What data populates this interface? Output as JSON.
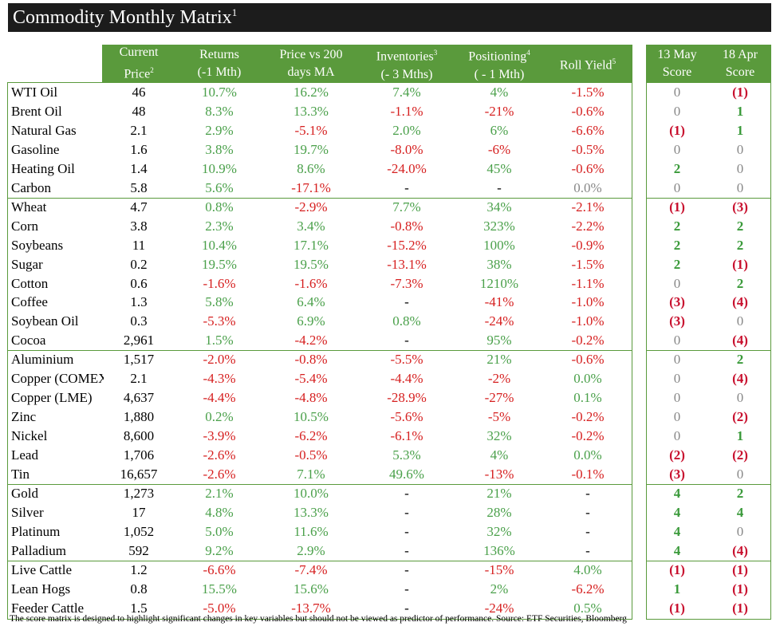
{
  "chart_data": {
    "type": "table",
    "title": "Commodity Monthly Matrix",
    "title_sup": "1",
    "columns": [
      {
        "label": "Current Price",
        "sup": "2"
      },
      {
        "label": "Returns (-1 Mth)",
        "sup": ""
      },
      {
        "label": "Price vs 200 days MA",
        "sup": ""
      },
      {
        "label": "Inventories (- 3 Mths)",
        "sup": "3"
      },
      {
        "label": "Positioning (- 1 Mth)",
        "sup": "4"
      },
      {
        "label": "Roll Yield",
        "sup": "5"
      },
      {
        "label": "13 May Score",
        "sup": ""
      },
      {
        "label": "18 Apr Score",
        "sup": ""
      }
    ],
    "groups": [
      {
        "rows": [
          {
            "name": "WTI Oil",
            "price": "46",
            "returns": "10.7%",
            "ma": "16.2%",
            "inv": "7.4%",
            "pos": "4%",
            "roll": "-1.5%",
            "may": "0",
            "apr": "(1)"
          },
          {
            "name": "Brent Oil",
            "price": "48",
            "returns": "8.3%",
            "ma": "13.3%",
            "inv": "-1.1%",
            "pos": "-21%",
            "roll": "-0.6%",
            "may": "0",
            "apr": "1"
          },
          {
            "name": "Natural Gas",
            "price": "2.1",
            "returns": "2.9%",
            "ma": "-5.1%",
            "inv": "2.0%",
            "pos": "6%",
            "roll": "-6.6%",
            "may": "(1)",
            "apr": "1"
          },
          {
            "name": "Gasoline",
            "price": "1.6",
            "returns": "3.8%",
            "ma": "19.7%",
            "inv": "-8.0%",
            "pos": "-6%",
            "roll": "-0.5%",
            "may": "0",
            "apr": "0"
          },
          {
            "name": "Heating Oil",
            "price": "1.4",
            "returns": "10.9%",
            "ma": "8.6%",
            "inv": "-24.0%",
            "pos": "45%",
            "roll": "-0.6%",
            "may": "2",
            "apr": "0"
          },
          {
            "name": "Carbon",
            "price": "5.8",
            "returns": "5.6%",
            "ma": "-17.1%",
            "inv": "-",
            "pos": "-",
            "roll": "0.0%",
            "may": "0",
            "apr": "0"
          }
        ]
      },
      {
        "rows": [
          {
            "name": "Wheat",
            "price": "4.7",
            "returns": "0.8%",
            "ma": "-2.9%",
            "inv": "7.7%",
            "pos": "34%",
            "roll": "-2.1%",
            "may": "(1)",
            "apr": "(3)"
          },
          {
            "name": "Corn",
            "price": "3.8",
            "returns": "2.3%",
            "ma": "3.4%",
            "inv": "-0.8%",
            "pos": "323%",
            "roll": "-2.2%",
            "may": "2",
            "apr": "2"
          },
          {
            "name": "Soybeans",
            "price": "11",
            "returns": "10.4%",
            "ma": "17.1%",
            "inv": "-15.2%",
            "pos": "100%",
            "roll": "-0.9%",
            "may": "2",
            "apr": "2"
          },
          {
            "name": "Sugar",
            "price": "0.2",
            "returns": "19.5%",
            "ma": "19.5%",
            "inv": "-13.1%",
            "pos": "38%",
            "roll": "-1.5%",
            "may": "2",
            "apr": "(1)"
          },
          {
            "name": "Cotton",
            "price": "0.6",
            "returns": "-1.6%",
            "ma": "-1.6%",
            "inv": "-7.3%",
            "pos": "1210%",
            "roll": "-1.1%",
            "may": "0",
            "apr": "2"
          },
          {
            "name": "Coffee",
            "price": "1.3",
            "returns": "5.8%",
            "ma": "6.4%",
            "inv": "-",
            "pos": "-41%",
            "roll": "-1.0%",
            "may": "(3)",
            "apr": "(4)"
          },
          {
            "name": "Soybean Oil",
            "price": "0.3",
            "returns": "-5.3%",
            "ma": "6.9%",
            "inv": "0.8%",
            "pos": "-24%",
            "roll": "-1.0%",
            "may": "(3)",
            "apr": "0"
          },
          {
            "name": "Cocoa",
            "price": "2,961",
            "returns": "1.5%",
            "ma": "-4.2%",
            "inv": "-",
            "pos": "95%",
            "roll": "-0.2%",
            "may": "0",
            "apr": "(4)"
          }
        ]
      },
      {
        "rows": [
          {
            "name": "Aluminium",
            "price": "1,517",
            "returns": "-2.0%",
            "ma": "-0.8%",
            "inv": "-5.5%",
            "pos": "21%",
            "roll": "-0.6%",
            "may": "0",
            "apr": "2"
          },
          {
            "name": "Copper (COMEX)",
            "price": "2.1",
            "returns": "-4.3%",
            "ma": "-5.4%",
            "inv": "-4.4%",
            "pos": "-2%",
            "roll": "0.0%",
            "may": "0",
            "apr": "(4)"
          },
          {
            "name": "Copper (LME)",
            "price": "4,637",
            "returns": "-4.4%",
            "ma": "-4.8%",
            "inv": "-28.9%",
            "pos": "-27%",
            "roll": "0.1%",
            "may": "0",
            "apr": "0"
          },
          {
            "name": "Zinc",
            "price": "1,880",
            "returns": "0.2%",
            "ma": "10.5%",
            "inv": "-5.6%",
            "pos": "-5%",
            "roll": "-0.2%",
            "may": "0",
            "apr": "(2)"
          },
          {
            "name": "Nickel",
            "price": "8,600",
            "returns": "-3.9%",
            "ma": "-6.2%",
            "inv": "-6.1%",
            "pos": "32%",
            "roll": "-0.2%",
            "may": "0",
            "apr": "1"
          },
          {
            "name": "Lead",
            "price": "1,706",
            "returns": "-2.6%",
            "ma": "-0.5%",
            "inv": "5.3%",
            "pos": "4%",
            "roll": "0.0%",
            "may": "(2)",
            "apr": "(2)"
          },
          {
            "name": "Tin",
            "price": "16,657",
            "returns": "-2.6%",
            "ma": "7.1%",
            "inv": "49.6%",
            "pos": "-13%",
            "roll": "-0.1%",
            "may": "(3)",
            "apr": "0"
          }
        ]
      },
      {
        "rows": [
          {
            "name": "Gold",
            "price": "1,273",
            "returns": "2.1%",
            "ma": "10.0%",
            "inv": "-",
            "pos": "21%",
            "roll": "-",
            "may": "4",
            "apr": "2"
          },
          {
            "name": "Silver",
            "price": "17",
            "returns": "4.8%",
            "ma": "13.3%",
            "inv": "-",
            "pos": "28%",
            "roll": "-",
            "may": "4",
            "apr": "4"
          },
          {
            "name": "Platinum",
            "price": "1,052",
            "returns": "5.0%",
            "ma": "11.6%",
            "inv": "-",
            "pos": "32%",
            "roll": "-",
            "may": "4",
            "apr": "0"
          },
          {
            "name": "Palladium",
            "price": "592",
            "returns": "9.2%",
            "ma": "2.9%",
            "inv": "-",
            "pos": "136%",
            "roll": "-",
            "may": "4",
            "apr": "(4)"
          }
        ]
      },
      {
        "rows": [
          {
            "name": "Live Cattle",
            "price": "1.2",
            "returns": "-6.6%",
            "ma": "-7.4%",
            "inv": "-",
            "pos": "-15%",
            "roll": "4.0%",
            "may": "(1)",
            "apr": "(1)"
          },
          {
            "name": "Lean Hogs",
            "price": "0.8",
            "returns": "15.5%",
            "ma": "15.6%",
            "inv": "-",
            "pos": "2%",
            "roll": "-6.2%",
            "may": "1",
            "apr": "(1)"
          },
          {
            "name": "Feeder Cattle",
            "price": "1.5",
            "returns": "-5.0%",
            "ma": "-13.7%",
            "inv": "-",
            "pos": "-24%",
            "roll": "0.5%",
            "may": "(1)",
            "apr": "(1)"
          }
        ]
      }
    ],
    "footnote": "The score matrix is designed to highlight significant changes in key variables but should not be viewed as predictor of performance. Source: ETF Securities, Bloomberg"
  },
  "colors": {
    "header_green": "#5a9a3c",
    "positive": "#4aa04a",
    "negative": "#d62020",
    "score_negative": "#c8102e",
    "score_positive": "#3a9a3a",
    "zero": "#888888",
    "title_bg": "#1c1c1c"
  }
}
